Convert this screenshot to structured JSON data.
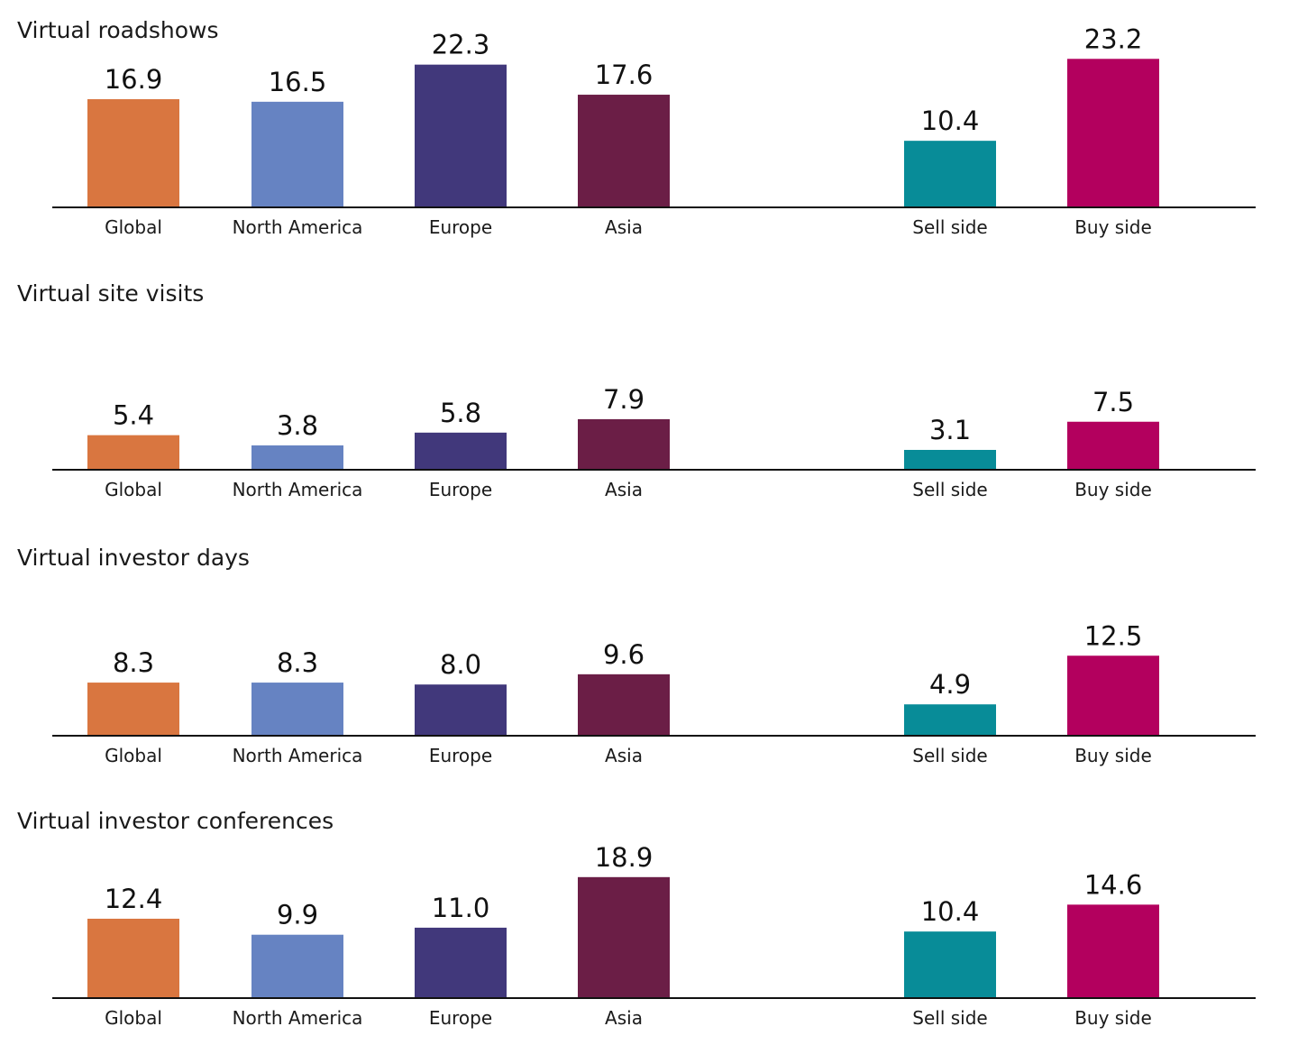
{
  "colors": {
    "Global": "#D97640",
    "North America": "#6683C2",
    "Europe": "#41387B",
    "Asia": "#6B1E46",
    "Sell side": "#088C98",
    "Buy side": "#B3005E"
  },
  "chart_data": [
    {
      "type": "bar",
      "title": "Virtual roadshows",
      "categories": [
        "Global",
        "North America",
        "Europe",
        "Asia",
        "Sell side",
        "Buy side"
      ],
      "values": [
        16.9,
        16.5,
        22.3,
        17.6,
        10.4,
        23.2
      ],
      "value_labels": [
        "16.9",
        "16.5",
        "22.3",
        "17.6",
        "10.4",
        "23.2"
      ],
      "xlabel": "",
      "ylabel": "",
      "grid": false,
      "legend": "none"
    },
    {
      "type": "bar",
      "title": "Virtual site visits",
      "categories": [
        "Global",
        "North America",
        "Europe",
        "Asia",
        "Sell side",
        "Buy side"
      ],
      "values": [
        5.4,
        3.8,
        5.8,
        7.9,
        3.1,
        7.5
      ],
      "value_labels": [
        "5.4",
        "3.8",
        "5.8",
        "7.9",
        "3.1",
        "7.5"
      ],
      "xlabel": "",
      "ylabel": "",
      "grid": false,
      "legend": "none"
    },
    {
      "type": "bar",
      "title": "Virtual investor days",
      "categories": [
        "Global",
        "North America",
        "Europe",
        "Asia",
        "Sell side",
        "Buy side"
      ],
      "values": [
        8.3,
        8.3,
        8.0,
        9.6,
        4.9,
        12.5
      ],
      "value_labels": [
        "8.3",
        "8.3",
        "8.0",
        "9.6",
        "4.9",
        "12.5"
      ],
      "xlabel": "",
      "ylabel": "",
      "grid": false,
      "legend": "none"
    },
    {
      "type": "bar",
      "title": "Virtual investor conferences",
      "categories": [
        "Global",
        "North America",
        "Europe",
        "Asia",
        "Sell side",
        "Buy side"
      ],
      "values": [
        12.4,
        9.9,
        11.0,
        18.9,
        10.4,
        14.6
      ],
      "value_labels": [
        "12.4",
        "9.9",
        "11.0",
        "18.9",
        "10.4",
        "14.6"
      ],
      "xlabel": "",
      "ylabel": "",
      "grid": false,
      "legend": "none"
    }
  ]
}
